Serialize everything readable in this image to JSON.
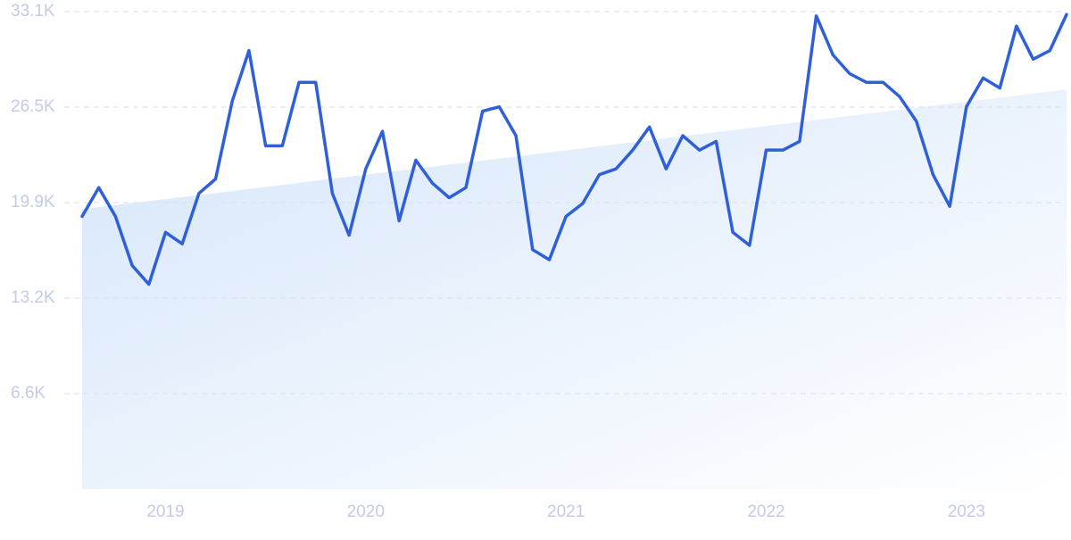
{
  "chart_data": {
    "type": "line",
    "categories": [
      null,
      null,
      null,
      null,
      null,
      "2019",
      null,
      null,
      null,
      null,
      null,
      null,
      null,
      null,
      null,
      null,
      null,
      "2020",
      null,
      null,
      null,
      null,
      null,
      null,
      null,
      null,
      null,
      null,
      null,
      "2021",
      null,
      null,
      null,
      null,
      null,
      null,
      null,
      null,
      null,
      null,
      null,
      "2022",
      null,
      null,
      null,
      null,
      null,
      null,
      null,
      null,
      null,
      null,
      null,
      "2023",
      null,
      null,
      null,
      null,
      null,
      null
    ],
    "series": [
      {
        "color": "#2f5fd9",
        "values": [
          18900,
          20900,
          18900,
          15500,
          14200,
          17800,
          17000,
          20500,
          21500,
          26900,
          30400,
          23800,
          23800,
          28200,
          28200,
          20500,
          17600,
          22200,
          24800,
          18600,
          22800,
          21200,
          20200,
          20900,
          26200,
          26500,
          24500,
          16600,
          15900,
          18900,
          19800,
          21800,
          22200,
          23500,
          25100,
          22200,
          24500,
          23500,
          24100,
          17800,
          16900,
          23500,
          23500,
          24100,
          32800,
          30100,
          28800,
          28200,
          28200,
          27200,
          25500,
          21800,
          19600,
          26500,
          28500,
          27800,
          32100,
          29800,
          30400,
          32900
        ]
      }
    ],
    "trend": [
      19400,
      27700
    ],
    "ylim": [
      0,
      33100
    ],
    "yticks": [
      {
        "value": 6620,
        "label": "6.6K"
      },
      {
        "value": 13240,
        "label": "13.2K"
      },
      {
        "value": 19860,
        "label": "19.9K"
      },
      {
        "value": 26480,
        "label": "26.5K"
      },
      {
        "value": 33100,
        "label": "33.1K"
      }
    ],
    "grid": true
  }
}
